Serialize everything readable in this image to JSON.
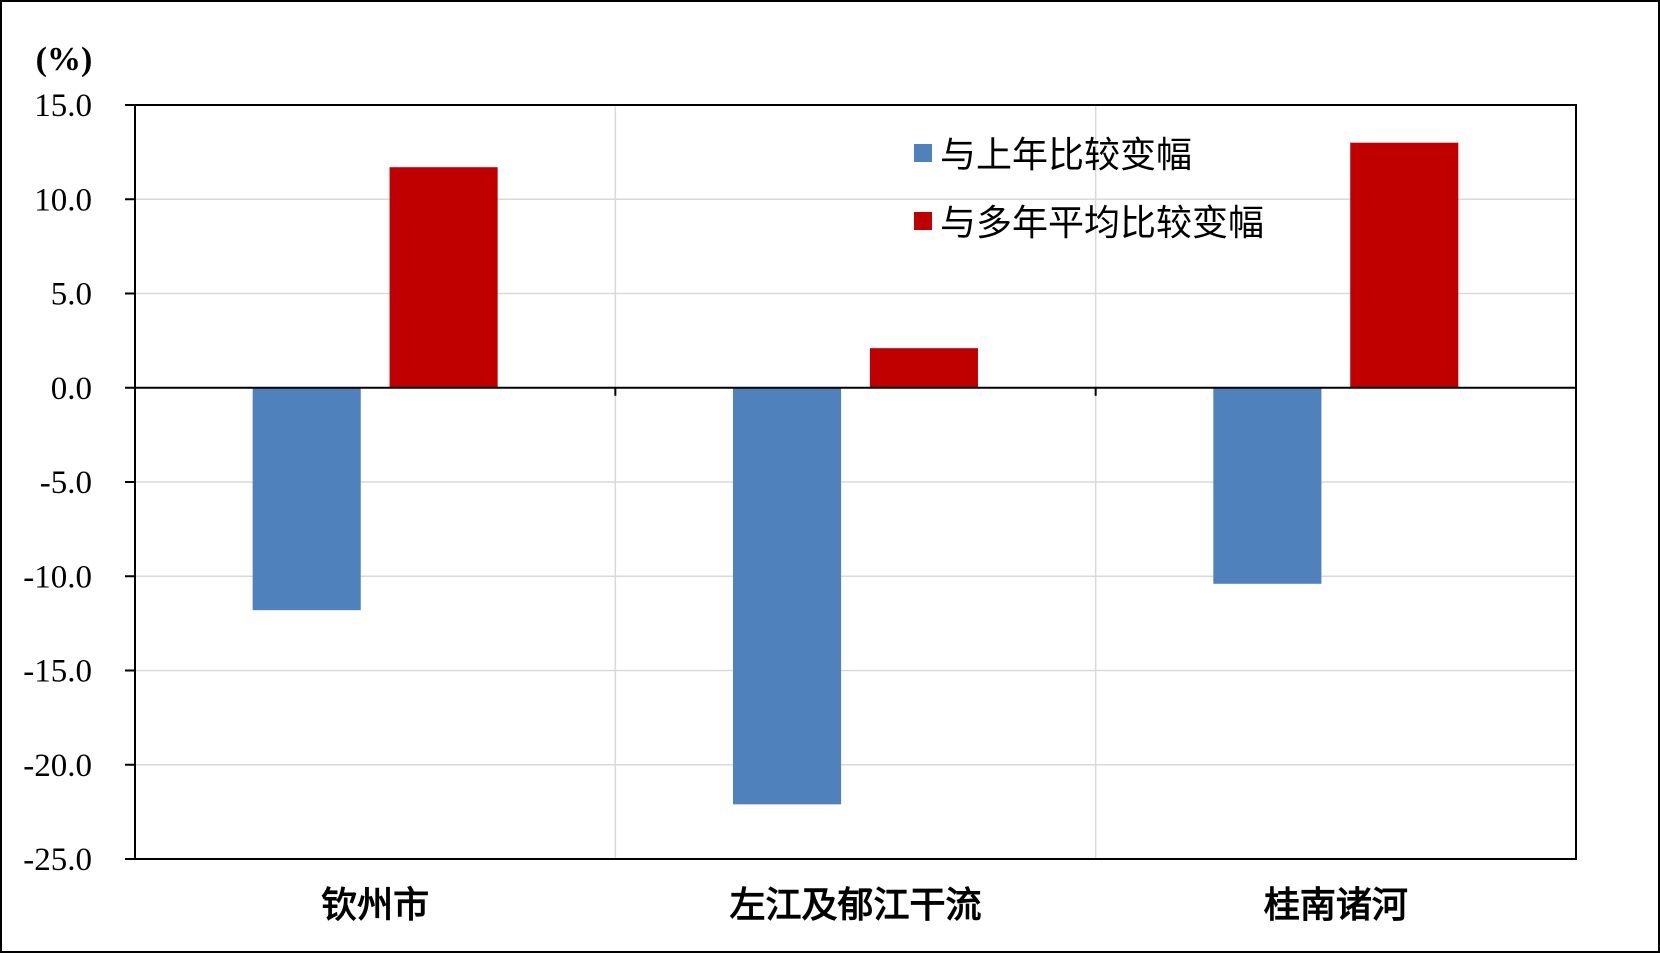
{
  "chart_data": {
    "type": "bar",
    "title": "",
    "ylabel": "(%)",
    "xlabel": "",
    "categories": [
      "钦州市",
      "左江及郁江干流",
      "桂南诸河"
    ],
    "series": [
      {
        "name": "与上年比较变幅",
        "color": "#4F81BD",
        "values": [
          -11.8,
          -22.1,
          -10.4
        ]
      },
      {
        "name": "与多年平均比较变幅",
        "color": "#C00000",
        "values": [
          11.7,
          2.1,
          13.0
        ]
      }
    ],
    "ylim": [
      -25.0,
      15.0
    ],
    "yticks": [
      15.0,
      10.0,
      5.0,
      0.0,
      -5.0,
      -10.0,
      -15.0,
      -20.0,
      -25.0
    ],
    "ytick_labels": [
      "15.0",
      "10.0",
      "5.0",
      "0.0",
      "-5.0",
      "-10.0",
      "-15.0",
      "-20.0",
      "-25.0"
    ],
    "grid": true,
    "legend_position": "top-center"
  }
}
